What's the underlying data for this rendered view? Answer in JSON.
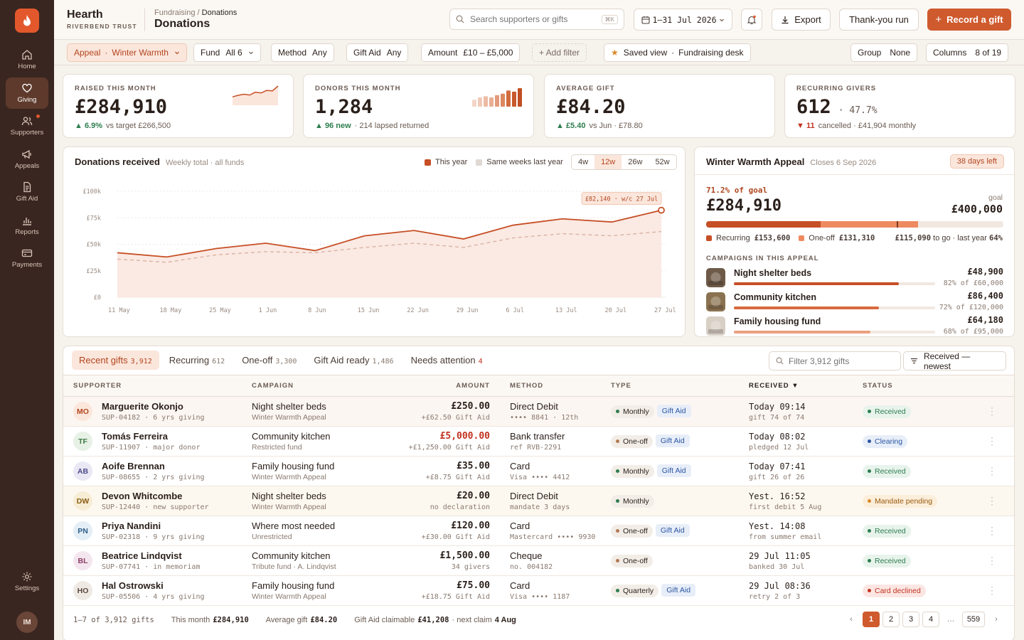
{
  "brand": {
    "name": "Hearth",
    "sub": "RIVERBEND TRUST"
  },
  "breadcrumb": {
    "parent": "Fundraising",
    "current": "Donations"
  },
  "page_title": "Donations",
  "search": {
    "placeholder": "Search supporters or gifts",
    "shortcut": "⌘K"
  },
  "date_range": "1–31 Jul 2026",
  "actions": {
    "export": "Export",
    "thankyou": "Thank-you run",
    "record": "Record a gift"
  },
  "nav": [
    {
      "label": "Home",
      "icon": "home-icon"
    },
    {
      "label": "Giving",
      "icon": "heart-icon",
      "active": true
    },
    {
      "label": "Supporters",
      "icon": "users-icon",
      "dot": true
    },
    {
      "label": "Appeals",
      "icon": "megaphone-icon"
    },
    {
      "label": "Gift Aid",
      "icon": "document-icon"
    },
    {
      "label": "Reports",
      "icon": "bar-chart-icon"
    },
    {
      "label": "Payments",
      "icon": "card-icon"
    }
  ],
  "settings_label": "Settings",
  "user_initials": "IM",
  "filters": {
    "appeal": {
      "k": "Appeal",
      "v": "Winter Warmth"
    },
    "fund": {
      "k": "Fund",
      "v": "All 6"
    },
    "method": {
      "k": "Method",
      "v": "Any"
    },
    "giftaid": {
      "k": "Gift Aid",
      "v": "Any"
    },
    "amount": {
      "k": "Amount",
      "v": "£10 – £5,000"
    },
    "add": "+ Add filter",
    "saved": {
      "k": "Saved view",
      "v": "Fundraising desk"
    },
    "group": {
      "k": "Group",
      "v": "None"
    },
    "columns": {
      "k": "Columns",
      "v": "8 of 19"
    }
  },
  "kpis": [
    {
      "label": "RAISED THIS MONTH",
      "value": "£284,910",
      "delta": "▲ 6.9%",
      "foot": "vs target £266,500",
      "dir": "up"
    },
    {
      "label": "DONORS THIS MONTH",
      "value": "1,284",
      "delta": "▲ 96 new",
      "foot": "· 214 lapsed returned",
      "dir": "up"
    },
    {
      "label": "AVERAGE GIFT",
      "value": "£84.20",
      "delta": "▲ £5.40",
      "foot": "vs Jun · £78.80",
      "dir": "up"
    },
    {
      "label": "RECURRING GIVERS",
      "value": "612",
      "value2": "· 47.7%",
      "delta": "▼ 11",
      "foot": "cancelled · £41,904 monthly",
      "dir": "down"
    }
  ],
  "kpi_spark": [
    3,
    3.6,
    4,
    3.7,
    4.8,
    4.5,
    5.5,
    5.3,
    7.2
  ],
  "kpi_bars": [
    3,
    4,
    4.5,
    4,
    5,
    5.6,
    7,
    6.5,
    8
  ],
  "chart": {
    "title": "Donations received",
    "subtitle": "Weekly total · all funds",
    "legend_this": "This year",
    "legend_last": "Same weeks last year",
    "ranges": [
      "4w",
      "12w",
      "26w",
      "52w"
    ],
    "range_on": "12w",
    "callout": "£82,140 · w/c 27 Jul"
  },
  "chart_data": {
    "type": "area",
    "x": [
      "11 May",
      "18 May",
      "25 May",
      "1 Jun",
      "8 Jun",
      "15 Jun",
      "22 Jun",
      "29 Jun",
      "6 Jul",
      "13 Jul",
      "20 Jul",
      "27 Jul"
    ],
    "yticks": [
      "£100k",
      "£75k",
      "£50k",
      "£25k",
      "£0"
    ],
    "ylim": [
      0,
      100000
    ],
    "series": [
      {
        "name": "This year",
        "values": [
          42000,
          38000,
          46000,
          51000,
          44000,
          58000,
          63000,
          55000,
          68000,
          74000,
          71000,
          82140
        ]
      },
      {
        "name": "Same weeks last year",
        "values": [
          36000,
          33000,
          40000,
          43000,
          42000,
          47000,
          51000,
          47000,
          56000,
          60000,
          58000,
          62000
        ]
      }
    ],
    "legend": "top-right"
  },
  "appeal": {
    "title": "Winter Warmth Appeal",
    "closes": "Closes 6 Sep 2026",
    "badge": "38 days left",
    "pct_label": "71.2% of goal",
    "raised": "£284,910",
    "goal_label": "goal",
    "goal": "£400,000",
    "recurring_frac": 0.384,
    "oneoff_frac": 0.328,
    "lastyear_frac": 0.64,
    "recurring_label": "Recurring",
    "recurring": "£153,600",
    "oneoff_label": "One-off",
    "oneoff": "£131,310",
    "togo": "£115,090",
    "togo_label": "to go · last year",
    "lastyear": "64%",
    "campaigns_label": "CAMPAIGNS IN THIS APPEAL",
    "campaigns": [
      {
        "name": "Night shelter beds",
        "amount": "£48,900",
        "pct": "82% of £60,000",
        "frac": 0.82,
        "color": "#c64f25"
      },
      {
        "name": "Community kitchen",
        "amount": "£86,400",
        "pct": "72% of £120,000",
        "frac": 0.72,
        "color": "#d76a3c"
      },
      {
        "name": "Family housing fund",
        "amount": "£64,180",
        "pct": "68% of £95,000",
        "frac": 0.68,
        "color": "#eba07f"
      }
    ]
  },
  "table": {
    "tabs": [
      {
        "label": "Recent gifts",
        "count": "3,912",
        "on": true
      },
      {
        "label": "Recurring",
        "count": "612"
      },
      {
        "label": "One-off",
        "count": "3,300"
      },
      {
        "label": "Gift Aid ready",
        "count": "1,486"
      },
      {
        "label": "Needs attention",
        "count": "4",
        "alert": true
      }
    ],
    "filter_placeholder": "Filter 3,912 gifts",
    "sort": "Received — newest",
    "headers": {
      "supporter": "SUPPORTER",
      "campaign": "CAMPAIGN",
      "amount": "AMOUNT",
      "method": "METHOD",
      "type": "TYPE",
      "received": "RECEIVED ▼",
      "status": "STATUS"
    },
    "rows": [
      {
        "ini": "MO",
        "name": "Marguerite Okonjo",
        "sub": "SUP-04182 · 6 yrs giving",
        "camp": "Night shelter beds",
        "camp_sub": "Winter Warmth Appeal",
        "amt": "£250.00",
        "amt_sub": "+£62.50 Gift Aid",
        "method": "Direct Debit",
        "method_sub": "•••• 8841 · 12th",
        "type": "Monthly",
        "ga": "Gift Aid",
        "rec": "Today 09:14",
        "rec_sub": "gift 74 of 74",
        "status": "Received",
        "st": "received",
        "tint": "#fbe6dc",
        "ink": "#b2461f",
        "highlight": true
      },
      {
        "ini": "TF",
        "name": "Tomás Ferreira",
        "sub": "SUP-11907 · major donor",
        "camp": "Community kitchen",
        "camp_sub": "Restricted fund",
        "amt": "£5,000.00",
        "amt_sub": "+£1,250.00 Gift Aid",
        "method": "Bank transfer",
        "method_sub": "ref RVB-2291",
        "type": "One-off",
        "ga": "Gift Aid",
        "rec": "Today 08:02",
        "rec_sub": "pledged 12 Jul",
        "status": "Clearing",
        "st": "clearing",
        "tint": "#e7f1e6",
        "ink": "#3e7a45",
        "red": true
      },
      {
        "ini": "AB",
        "name": "Aoife Brennan",
        "sub": "SUP-08655 · 2 yrs giving",
        "camp": "Family housing fund",
        "camp_sub": "Winter Warmth Appeal",
        "amt": "£35.00",
        "amt_sub": "+£8.75 Gift Aid",
        "method": "Card",
        "method_sub": "Visa •••• 4412",
        "type": "Monthly",
        "ga": "Gift Aid",
        "rec": "Today 07:41",
        "rec_sub": "gift 26 of 26",
        "status": "Received",
        "st": "received",
        "tint": "#e9e8f4",
        "ink": "#4c4a88"
      },
      {
        "ini": "DW",
        "name": "Devon Whitcombe",
        "sub": "SUP-12440 · new supporter",
        "camp": "Night shelter beds",
        "camp_sub": "Winter Warmth Appeal",
        "amt": "£20.00",
        "amt_sub": "no declaration",
        "method": "Direct Debit",
        "method_sub": "mandate 3 days",
        "type": "Monthly",
        "ga": "",
        "rec": "Yest. 16:52",
        "rec_sub": "first debit 5 Aug",
        "status": "Mandate pending",
        "st": "pending",
        "tint": "#f7ecd4",
        "ink": "#8a5d12",
        "warn": true
      },
      {
        "ini": "PN",
        "name": "Priya Nandini",
        "sub": "SUP-02318 · 9 yrs giving",
        "camp": "Where most needed",
        "camp_sub": "Unrestricted",
        "amt": "£120.00",
        "amt_sub": "+£30.00 Gift Aid",
        "method": "Card",
        "method_sub": "Mastercard •••• 9930",
        "type": "One-off",
        "ga": "Gift Aid",
        "rec": "Yest. 14:08",
        "rec_sub": "from summer email",
        "status": "Received",
        "st": "received",
        "tint": "#e4eef6",
        "ink": "#2f5f88"
      },
      {
        "ini": "BL",
        "name": "Beatrice Lindqvist",
        "sub": "SUP-07741 · in memoriam",
        "camp": "Community kitchen",
        "camp_sub": "Tribute fund · A. Lindqvist",
        "amt": "£1,500.00",
        "amt_sub": "34 givers",
        "method": "Cheque",
        "method_sub": "no. 004182",
        "type": "One-off",
        "ga": "",
        "rec": "29 Jul 11:05",
        "rec_sub": "banked 30 Jul",
        "status": "Received",
        "st": "received",
        "tint": "#f4e6ee",
        "ink": "#8a3d68"
      },
      {
        "ini": "HO",
        "name": "Hal Ostrowski",
        "sub": "SUP-05506 · 4 yrs giving",
        "camp": "Family housing fund",
        "camp_sub": "Winter Warmth Appeal",
        "amt": "£75.00",
        "amt_sub": "+£18.75 Gift Aid",
        "method": "Card",
        "method_sub": "Visa •••• 1187",
        "type": "Quarterly",
        "ga": "Gift Aid",
        "rec": "29 Jul 08:36",
        "rec_sub": "retry 2 of 3",
        "status": "Card declined",
        "st": "declined",
        "tint": "#efe9e4",
        "ink": "#5a4a40"
      }
    ],
    "footer": {
      "range": "1–7 of 3,912 gifts",
      "month_label": "This month",
      "month": "£284,910",
      "avg_label": "Average gift",
      "avg": "£84.20",
      "ga_label": "Gift Aid claimable",
      "ga": "£41,208",
      "claim_label": "· next claim",
      "claim": "4 Aug"
    },
    "pages": [
      "1",
      "2",
      "3",
      "4",
      "…",
      "559"
    ]
  },
  "colors": {
    "accent": "#cf5a2e",
    "this_year": "#c64f25",
    "last_year": "#d9b4a3",
    "recurring": "#c64f25",
    "oneoff": "#ee8a5f"
  }
}
